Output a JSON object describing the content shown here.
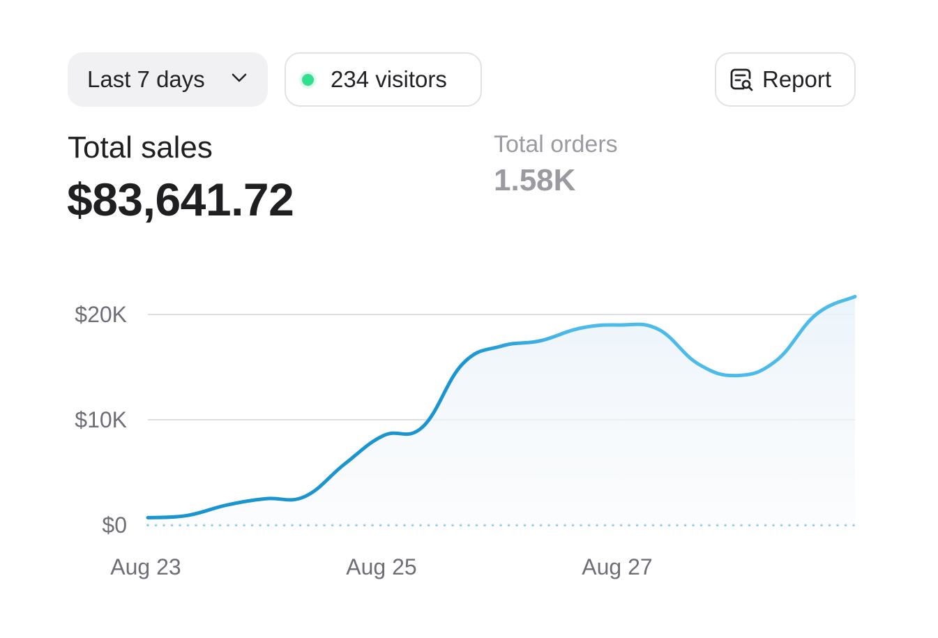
{
  "toolbar": {
    "range_label": "Last 7 days",
    "visitors_label": "234 visitors",
    "report_label": "Report"
  },
  "summary": {
    "sales_label": "Total sales",
    "sales_value": "$83,641.72",
    "orders_label": "Total orders",
    "orders_value": "1.58K"
  },
  "colors": {
    "line_start": "#1a95cf",
    "line_end": "#4dbbea",
    "live_dot": "#2fe08f"
  },
  "chart_data": {
    "type": "area",
    "title": "",
    "xlabel": "",
    "ylabel": "",
    "y_ticks": [
      {
        "value": 0,
        "label": "$0"
      },
      {
        "value": 10000,
        "label": "$10K"
      },
      {
        "value": 20000,
        "label": "$20K"
      }
    ],
    "x_ticks": [
      {
        "value": 0,
        "label": "Aug 23"
      },
      {
        "value": 2,
        "label": "Aug 25"
      },
      {
        "value": 4,
        "label": "Aug 27"
      }
    ],
    "xlim": [
      0,
      6
    ],
    "ylim": [
      0,
      20000
    ],
    "series": [
      {
        "name": "Total sales",
        "x": [
          0,
          0.33,
          0.67,
          1.0,
          1.33,
          1.67,
          2.0,
          2.33,
          2.67,
          3.0,
          3.33,
          3.67,
          4.0,
          4.33,
          4.67,
          5.0,
          5.33,
          5.67,
          6.0
        ],
        "values": [
          700,
          900,
          1900,
          2500,
          2700,
          5800,
          8500,
          9300,
          15300,
          17000,
          17500,
          18700,
          19000,
          18600,
          15300,
          14200,
          15600,
          20000,
          21700
        ]
      }
    ]
  }
}
